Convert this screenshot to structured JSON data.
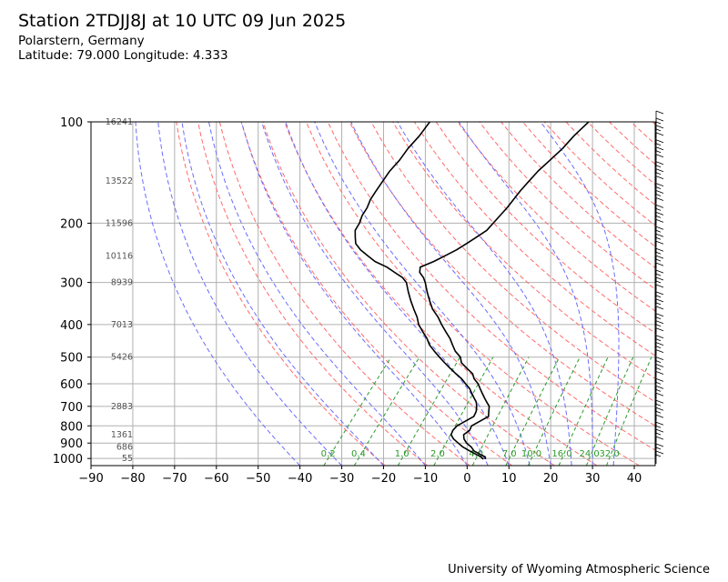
{
  "header": {
    "title": "Station 2TDJJ8J at 10 UTC 09 Jun 2025",
    "location": "Polarstern, Germany",
    "coords": "Latitude: 79.000 Longitude: 4.333"
  },
  "footer": {
    "credit": "University of Wyoming Atmospheric Science"
  },
  "chart_data": {
    "type": "line",
    "chart_kind": "skew-T log-p sounding",
    "x_axis": {
      "range": [
        -90,
        45
      ],
      "ticks": [
        -90,
        -80,
        -70,
        -60,
        -50,
        -40,
        -30,
        -20,
        -10,
        0,
        10,
        20,
        30,
        40
      ]
    },
    "y_axis": {
      "scale": "log",
      "range": [
        1050,
        100
      ],
      "ticks": [
        100,
        200,
        300,
        400,
        500,
        600,
        700,
        800,
        900,
        1000
      ]
    },
    "grid": true,
    "height_labels": [
      {
        "p": 100,
        "text": "16241"
      },
      {
        "p": 150,
        "text": "13522"
      },
      {
        "p": 200,
        "text": "11596"
      },
      {
        "p": 250,
        "text": "10116"
      },
      {
        "p": 300,
        "text": "8939"
      },
      {
        "p": 400,
        "text": "7013"
      },
      {
        "p": 500,
        "text": "5426"
      },
      {
        "p": 700,
        "text": "2883"
      },
      {
        "p": 850,
        "text": "1361"
      },
      {
        "p": 925,
        "text": "686"
      },
      {
        "p": 1000,
        "text": "55"
      }
    ],
    "mixing_ratio_labels": [
      "0.2",
      "0.4",
      "1.0",
      "2.0",
      "4.0",
      "7.0",
      "10.0",
      "16.0",
      "24.0",
      "32.0"
    ],
    "mixing_ratio_values": [
      0.2,
      0.4,
      1.0,
      2.0,
      4.0,
      7.0,
      10.0,
      16.0,
      24.0,
      32.0
    ],
    "series": [
      {
        "role": "temperature",
        "points": [
          [
            1005,
            3.0
          ],
          [
            990,
            2.5
          ],
          [
            975,
            1.0
          ],
          [
            950,
            -1.5
          ],
          [
            925,
            -3.0
          ],
          [
            900,
            -5.0
          ],
          [
            875,
            -6.5
          ],
          [
            850,
            -7.5
          ],
          [
            825,
            -7.0
          ],
          [
            800,
            -7.5
          ],
          [
            775,
            -6.5
          ],
          [
            750,
            -5.5
          ],
          [
            725,
            -6.5
          ],
          [
            700,
            -7.5
          ],
          [
            680,
            -9.0
          ],
          [
            660,
            -10.5
          ],
          [
            640,
            -12.0
          ],
          [
            620,
            -13.5
          ],
          [
            600,
            -15.0
          ],
          [
            580,
            -17.0
          ],
          [
            560,
            -18.5
          ],
          [
            540,
            -21.0
          ],
          [
            520,
            -23.5
          ],
          [
            500,
            -25.0
          ],
          [
            480,
            -27.5
          ],
          [
            460,
            -29.5
          ],
          [
            440,
            -31.5
          ],
          [
            420,
            -34.0
          ],
          [
            400,
            -36.5
          ],
          [
            380,
            -39.0
          ],
          [
            360,
            -42.0
          ],
          [
            340,
            -44.5
          ],
          [
            320,
            -47.0
          ],
          [
            300,
            -49.5
          ],
          [
            290,
            -51.0
          ],
          [
            280,
            -53.0
          ],
          [
            270,
            -54.0
          ],
          [
            260,
            -52.0
          ],
          [
            250,
            -50.5
          ],
          [
            240,
            -49.0
          ],
          [
            230,
            -48.0
          ],
          [
            220,
            -47.0
          ],
          [
            210,
            -46.0
          ],
          [
            200,
            -46.0
          ],
          [
            180,
            -46.0
          ],
          [
            160,
            -46.5
          ],
          [
            150,
            -46.5
          ],
          [
            140,
            -46.5
          ],
          [
            130,
            -46.0
          ],
          [
            120,
            -45.5
          ],
          [
            110,
            -45.5
          ],
          [
            100,
            -45.0
          ]
        ]
      },
      {
        "role": "dewpoint",
        "points": [
          [
            1005,
            2.5
          ],
          [
            990,
            1.5
          ],
          [
            975,
            0.0
          ],
          [
            950,
            -2.5
          ],
          [
            925,
            -5.0
          ],
          [
            900,
            -7.0
          ],
          [
            875,
            -9.0
          ],
          [
            850,
            -10.5
          ],
          [
            825,
            -11.0
          ],
          [
            800,
            -11.0
          ],
          [
            775,
            -10.0
          ],
          [
            750,
            -9.0
          ],
          [
            725,
            -9.5
          ],
          [
            700,
            -10.5
          ],
          [
            680,
            -11.5
          ],
          [
            660,
            -13.0
          ],
          [
            640,
            -14.5
          ],
          [
            620,
            -16.0
          ],
          [
            600,
            -18.0
          ],
          [
            580,
            -20.0
          ],
          [
            560,
            -22.5
          ],
          [
            540,
            -25.0
          ],
          [
            520,
            -27.5
          ],
          [
            500,
            -30.0
          ],
          [
            480,
            -32.5
          ],
          [
            460,
            -35.0
          ],
          [
            440,
            -37.0
          ],
          [
            420,
            -39.5
          ],
          [
            400,
            -42.0
          ],
          [
            380,
            -44.0
          ],
          [
            360,
            -46.5
          ],
          [
            340,
            -49.0
          ],
          [
            320,
            -51.5
          ],
          [
            300,
            -54.0
          ],
          [
            290,
            -56.0
          ],
          [
            280,
            -59.0
          ],
          [
            270,
            -62.0
          ],
          [
            260,
            -66.0
          ],
          [
            250,
            -69.0
          ],
          [
            240,
            -72.0
          ],
          [
            230,
            -74.5
          ],
          [
            220,
            -76.0
          ],
          [
            210,
            -77.5
          ],
          [
            200,
            -78.0
          ],
          [
            190,
            -79.0
          ],
          [
            180,
            -79.5
          ],
          [
            170,
            -80.5
          ],
          [
            160,
            -81.0
          ],
          [
            150,
            -81.5
          ],
          [
            140,
            -82.0
          ],
          [
            130,
            -82.0
          ],
          [
            120,
            -82.5
          ],
          [
            110,
            -82.5
          ],
          [
            100,
            -83.0
          ]
        ]
      }
    ]
  },
  "colors": {
    "temperature": "#000000",
    "dewpoint": "#000000",
    "dry_adiabat": "#ff6a6a",
    "moist_adiabat": "#6b6bff",
    "mixing_ratio": "#2a9a2a",
    "height_label": "#555555",
    "grid": "#b0b0b0"
  }
}
